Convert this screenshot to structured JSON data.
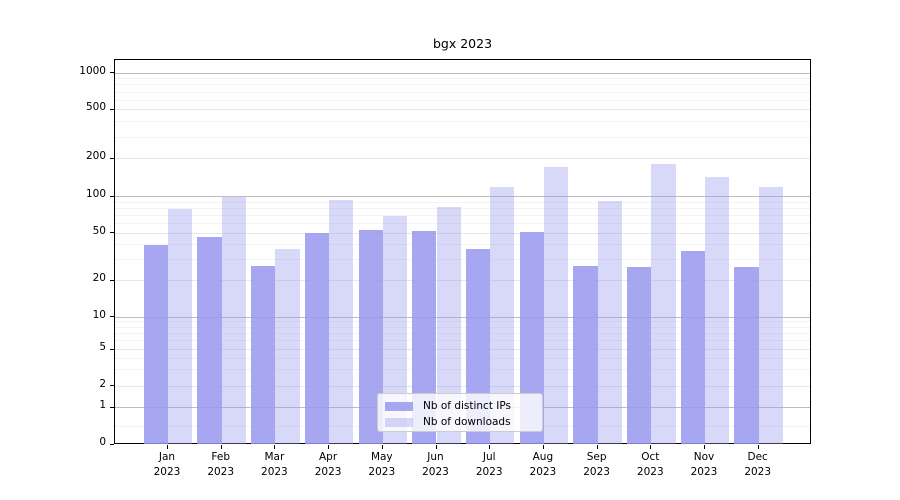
{
  "chart_data": {
    "type": "bar",
    "title": "bgx 2023",
    "categories": [
      "Jan",
      "Feb",
      "Mar",
      "Apr",
      "May",
      "Jun",
      "Jul",
      "Aug",
      "Sep",
      "Oct",
      "Nov",
      "Dec"
    ],
    "x_tick_second_line": "2023",
    "series": [
      {
        "name": "Nb of distinct IPs",
        "color": "rgba(152,152,238,0.85)",
        "values": [
          40,
          47,
          27,
          51,
          54,
          53,
          37,
          52,
          27,
          26,
          36,
          26
        ]
      },
      {
        "name": "Nb of downloads",
        "color": "rgba(152,152,238,0.38)",
        "values": [
          80,
          100,
          37,
          94,
          70,
          83,
          120,
          175,
          92,
          185,
          145,
          120
        ]
      }
    ],
    "yscale": "symlog",
    "yticks": [
      0,
      1,
      2,
      5,
      10,
      20,
      50,
      100,
      200,
      500,
      1000
    ],
    "ylim": [
      0,
      1400
    ],
    "grid": true,
    "legend_position": "lower center",
    "colors": {
      "major_grid": "#bdbdbd",
      "labeled_grid": "#e7e7e7",
      "minor_grid": "#f3f3f3",
      "axis": "#000000"
    }
  }
}
